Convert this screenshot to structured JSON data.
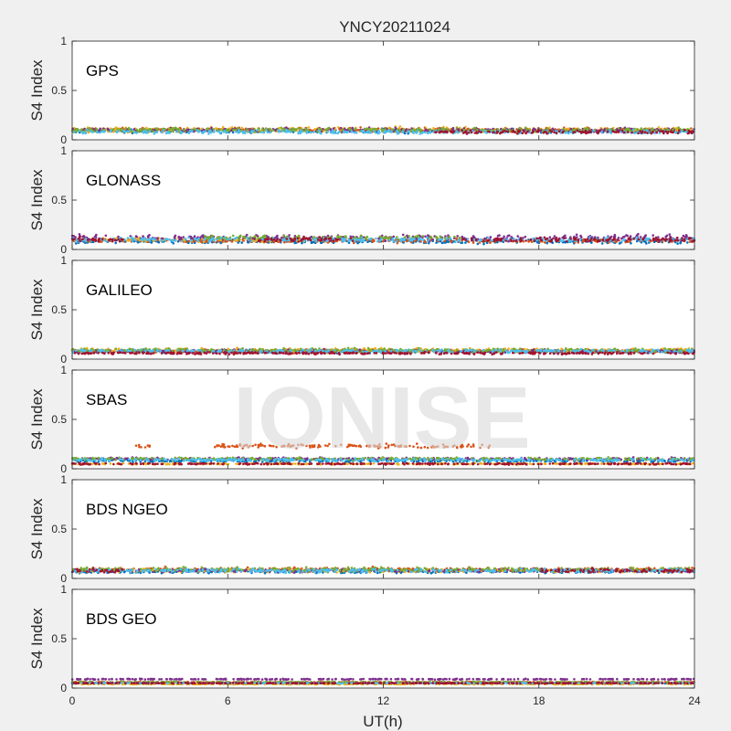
{
  "chart_data": {
    "type": "scatter",
    "title": "YNCY20211024",
    "xlabel": "UT(h)",
    "ylabel": "S4 Index",
    "xlim": [
      0,
      24
    ],
    "ylim": [
      0,
      1
    ],
    "xticks": [
      0,
      6,
      12,
      18,
      24
    ],
    "yticks": [
      0,
      0.5,
      1
    ],
    "ytick_labels": [
      "0",
      "0.5",
      "1"
    ],
    "watermark": "IONISE",
    "colors": [
      "#0072BD",
      "#D95319",
      "#EDB120",
      "#7E2F8E",
      "#77AC30",
      "#4DBEEE",
      "#A2142F"
    ],
    "panels": [
      {
        "label": "GPS",
        "series": [
          {
            "segments": [
              [
                0,
                24
              ]
            ],
            "mean": 0.09,
            "spread": 0.03
          },
          {
            "segments": [
              [
                0,
                24
              ]
            ],
            "mean": 0.1,
            "spread": 0.03
          },
          {
            "segments": [
              [
                0,
                24
              ]
            ],
            "mean": 0.1,
            "spread": 0.04
          },
          {
            "segments": [
              [
                0,
                24
              ]
            ],
            "mean": 0.1,
            "spread": 0.03
          },
          {
            "segments": [
              [
                0,
                24
              ]
            ],
            "mean": 0.1,
            "spread": 0.03
          },
          {
            "segments": [
              [
                0,
                24
              ]
            ],
            "mean": 0.08,
            "spread": 0.025
          },
          {
            "segments": [
              [
                14,
                24
              ]
            ],
            "mean": 0.08,
            "spread": 0.025
          }
        ]
      },
      {
        "label": "GLONASS",
        "series": [
          {
            "segments": [
              [
                0,
                24
              ]
            ],
            "mean": 0.08,
            "spread": 0.03
          },
          {
            "segments": [
              [
                0,
                24
              ]
            ],
            "mean": 0.09,
            "spread": 0.03
          },
          {
            "segments": [
              [
                0,
                10
              ]
            ],
            "mean": 0.1,
            "spread": 0.03
          },
          {
            "segments": [
              [
                0,
                24
              ]
            ],
            "mean": 0.12,
            "spread": 0.04
          },
          {
            "segments": [
              [
                5,
                15
              ]
            ],
            "mean": 0.12,
            "spread": 0.03
          },
          {
            "segments": [
              [
                0,
                24
              ]
            ],
            "mean": 0.1,
            "spread": 0.03
          },
          {
            "segments": [
              [
                0,
                2
              ],
              [
                7,
                11
              ],
              [
                15,
                24
              ]
            ],
            "mean": 0.1,
            "spread": 0.03
          }
        ]
      },
      {
        "label": "GALILEO",
        "series": [
          {
            "segments": [
              [
                0,
                24
              ]
            ],
            "mean": 0.08,
            "spread": 0.025
          },
          {
            "segments": [
              [
                0,
                24
              ]
            ],
            "mean": 0.08,
            "spread": 0.025
          },
          {
            "segments": [
              [
                0,
                24
              ]
            ],
            "mean": 0.09,
            "spread": 0.03
          },
          {
            "segments": [
              [
                0,
                24
              ]
            ],
            "mean": 0.08,
            "spread": 0.025
          },
          {
            "segments": [
              [
                0,
                24
              ]
            ],
            "mean": 0.09,
            "spread": 0.03
          },
          {
            "segments": [
              [
                0,
                24
              ]
            ],
            "mean": 0.08,
            "spread": 0.025
          },
          {
            "segments": [
              [
                0,
                24
              ]
            ],
            "mean": 0.06,
            "spread": 0.015
          }
        ]
      },
      {
        "label": "SBAS",
        "series": [
          {
            "segments": [
              [
                0,
                24
              ]
            ],
            "mean": 0.08,
            "spread": 0.02
          },
          {
            "segments": [
              [
                2.4,
                3
              ],
              [
                5.5,
                16.2
              ]
            ],
            "mean": 0.23,
            "spread": 0.03
          },
          {
            "segments": [
              [
                0,
                24
              ]
            ],
            "mean": 0.05,
            "spread": 0.01
          },
          {
            "segments": [
              [
                0,
                24
              ]
            ],
            "mean": 0.1,
            "spread": 0.02
          },
          {
            "segments": [
              [
                0,
                24
              ]
            ],
            "mean": 0.1,
            "spread": 0.02
          },
          {
            "segments": [
              [
                0,
                24
              ]
            ],
            "mean": 0.09,
            "spread": 0.02
          },
          {
            "segments": [
              [
                0,
                24
              ]
            ],
            "mean": 0.05,
            "spread": 0.01
          }
        ]
      },
      {
        "label": "BDS NGEO",
        "series": [
          {
            "segments": [
              [
                0,
                24
              ]
            ],
            "mean": 0.07,
            "spread": 0.025
          },
          {
            "segments": [
              [
                0,
                24
              ]
            ],
            "mean": 0.09,
            "spread": 0.03
          },
          {
            "segments": [
              [
                0,
                24
              ]
            ],
            "mean": 0.08,
            "spread": 0.025
          },
          {
            "segments": [
              [
                0,
                24
              ]
            ],
            "mean": 0.08,
            "spread": 0.025
          },
          {
            "segments": [
              [
                0,
                24
              ]
            ],
            "mean": 0.09,
            "spread": 0.03
          },
          {
            "segments": [
              [
                0,
                24
              ]
            ],
            "mean": 0.08,
            "spread": 0.025
          },
          {
            "segments": [
              [
                0,
                2
              ],
              [
                18,
                24
              ]
            ],
            "mean": 0.08,
            "spread": 0.03
          }
        ]
      },
      {
        "label": "BDS GEO",
        "series": [
          {
            "segments": [
              [
                0,
                24
              ]
            ],
            "mean": 0.05,
            "spread": 0.005
          },
          {
            "segments": [
              [
                0,
                24
              ]
            ],
            "mean": 0.06,
            "spread": 0.005
          },
          {
            "segments": [
              [
                0,
                24
              ]
            ],
            "mean": 0.04,
            "spread": 0.005
          },
          {
            "segments": [
              [
                0,
                24
              ]
            ],
            "mean": 0.09,
            "spread": 0.006
          },
          {
            "segments": [
              [
                0,
                24
              ]
            ],
            "mean": 0.06,
            "spread": 0.005
          },
          {
            "segments": [
              [
                0,
                24
              ]
            ],
            "mean": 0.05,
            "spread": 0.005
          },
          {
            "segments": [
              [
                0,
                24
              ]
            ],
            "mean": 0.05,
            "spread": 0.005
          }
        ]
      }
    ]
  }
}
